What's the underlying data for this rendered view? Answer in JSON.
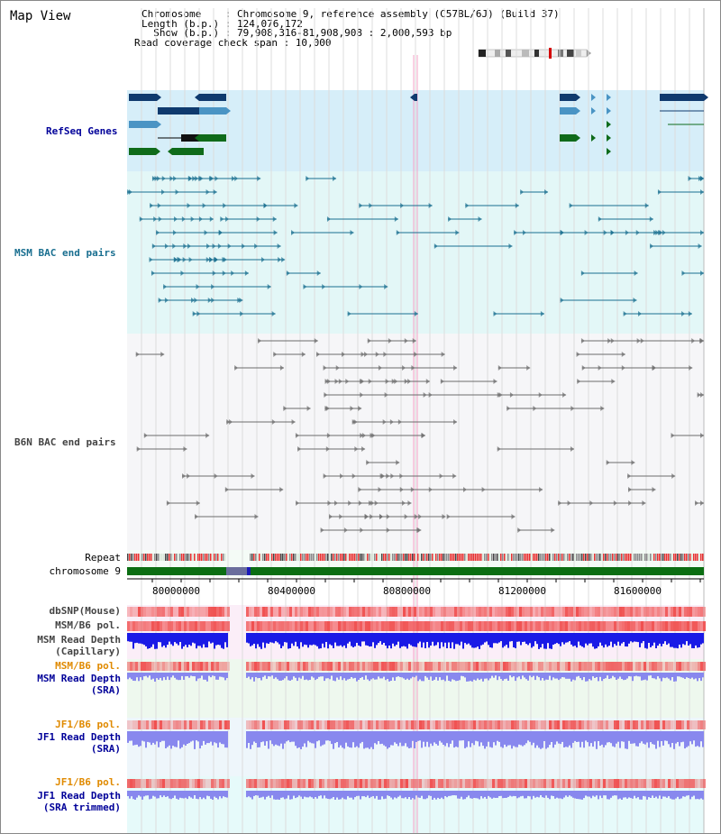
{
  "app": {
    "title": "Map View"
  },
  "info": {
    "chromosome_label": "Chromosome    : ",
    "chromosome_value": "Chromosome 9, reference assembly (C57BL/6J) (Build 37)",
    "length_label": "Length (b.p.) : ",
    "length_value": "124,076,172",
    "show_label": "  Show (b.p.) : ",
    "show_value": "79,908,316-81,908,908 : 2,000,593 bp",
    "coverage_label": "Read coverage check span : ",
    "coverage_value": "10,000"
  },
  "tracks": {
    "refseq": "RefSeq Genes",
    "msm_bac": "MSM BAC end pairs",
    "b6n_bac": "B6N BAC end pairs",
    "repeat": "Repeat",
    "chromosome": "chromosome 9",
    "dbsnp": "dbSNP(Mouse)",
    "msm_b6_pol": "MSM/B6 pol.",
    "msm_read_depth_cap_1": "MSM Read Depth",
    "msm_read_depth_cap_2": "(Capillary)",
    "msm_b6_pol_sra": "MSM/B6 pol.",
    "msm_read_depth_sra_1": "MSM Read Depth",
    "msm_read_depth_sra_2": "(SRA)",
    "jf1_b6_pol": "JF1/B6 pol.",
    "jf1_read_depth_1": "JF1 Read Depth",
    "jf1_read_depth_2": "(SRA)",
    "jf1_b6_pol_trim": "JF1/B6 pol.",
    "jf1_read_depth_trim_1": "JF1 Read Depth",
    "jf1_read_depth_trim_2": "(SRA trimmed)"
  },
  "axis": {
    "ticks": [
      "80000000",
      "80400000",
      "80800000",
      "81200000",
      "81600000"
    ]
  },
  "colors": {
    "refseq_bg": "#d6eef9",
    "msm_bg": "#e3f7f7",
    "b6n_bg": "#f6f6f8",
    "refseq_dark": "#0f3a6e",
    "refseq_light": "#4a94c4",
    "refseq_green": "#0f6b1a",
    "msm_feature": "#1a6f90",
    "b6n_feature": "#6c6c6c",
    "chromosome_bar": "#0b6e12",
    "gap": "#6a6e9c",
    "label_blue": "#000099",
    "label_msm": "#1a6f90",
    "label_gray": "#444444",
    "label_orange": "#e08a00",
    "snp_red": "#f05050",
    "depth_blue": "#1a1ae6",
    "depth_light": "#8888ee"
  }
}
